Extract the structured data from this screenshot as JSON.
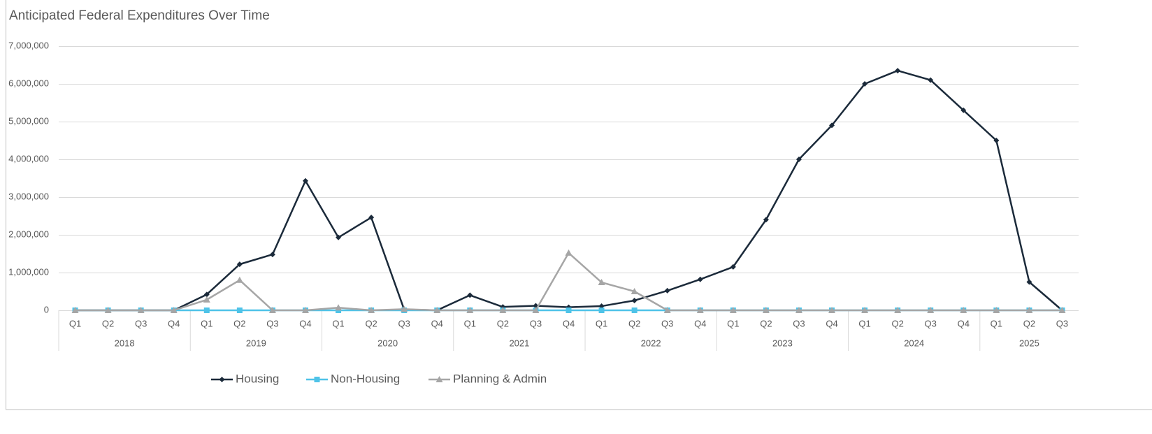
{
  "chart_data": {
    "type": "line",
    "title": "Anticipated Federal Expenditures Over Time",
    "categories": [
      "Q1",
      "Q2",
      "Q3",
      "Q4",
      "Q1",
      "Q2",
      "Q3",
      "Q4",
      "Q1",
      "Q2",
      "Q3",
      "Q4",
      "Q1",
      "Q2",
      "Q3",
      "Q4",
      "Q1",
      "Q2",
      "Q3",
      "Q4",
      "Q1",
      "Q2",
      "Q3",
      "Q4",
      "Q1",
      "Q2",
      "Q3",
      "Q4",
      "Q1",
      "Q2",
      "Q3"
    ],
    "category_groups": [
      "2018",
      "2019",
      "2020",
      "2021",
      "2022",
      "2023",
      "2024",
      "2025"
    ],
    "series": [
      {
        "name": "Housing",
        "color": "#1b2a3a",
        "marker": "diamond",
        "values": [
          0,
          0,
          0,
          0,
          420000,
          1220000,
          1480000,
          3430000,
          1930000,
          2460000,
          20000,
          0,
          400000,
          90000,
          120000,
          80000,
          110000,
          260000,
          520000,
          820000,
          1150000,
          2400000,
          4000000,
          4900000,
          6000000,
          6350000,
          6100000,
          5300000,
          4500000,
          750000,
          0
        ]
      },
      {
        "name": "Non-Housing",
        "color": "#4fc3e8",
        "marker": "square",
        "values": [
          0,
          0,
          0,
          0,
          0,
          0,
          0,
          0,
          0,
          0,
          0,
          0,
          0,
          0,
          0,
          0,
          0,
          0,
          0,
          0,
          0,
          0,
          0,
          0,
          0,
          0,
          0,
          0,
          0,
          0,
          0
        ]
      },
      {
        "name": "Planning & Admin",
        "color": "#a6a6a6",
        "marker": "triangle",
        "values": [
          0,
          0,
          0,
          0,
          280000,
          800000,
          0,
          0,
          70000,
          0,
          30000,
          0,
          0,
          0,
          0,
          1520000,
          740000,
          500000,
          0,
          0,
          0,
          0,
          0,
          0,
          0,
          0,
          0,
          0,
          0,
          0,
          0
        ]
      }
    ],
    "ylim": [
      0,
      7000000
    ],
    "yticks": [
      0,
      {
        "value": 1000000,
        "label": "1,000,000"
      },
      {
        "value": 2000000,
        "label": "2,000,000"
      },
      {
        "value": 3000000,
        "label": "3,000,000"
      },
      {
        "value": 4000000,
        "label": "4,000,000"
      },
      {
        "value": 5000000,
        "label": "5,000,000"
      },
      {
        "value": 6000000,
        "label": "6,000,000"
      },
      {
        "value": 7000000,
        "label": "7,000,000"
      }
    ],
    "grid": true,
    "legend": "bottom"
  }
}
